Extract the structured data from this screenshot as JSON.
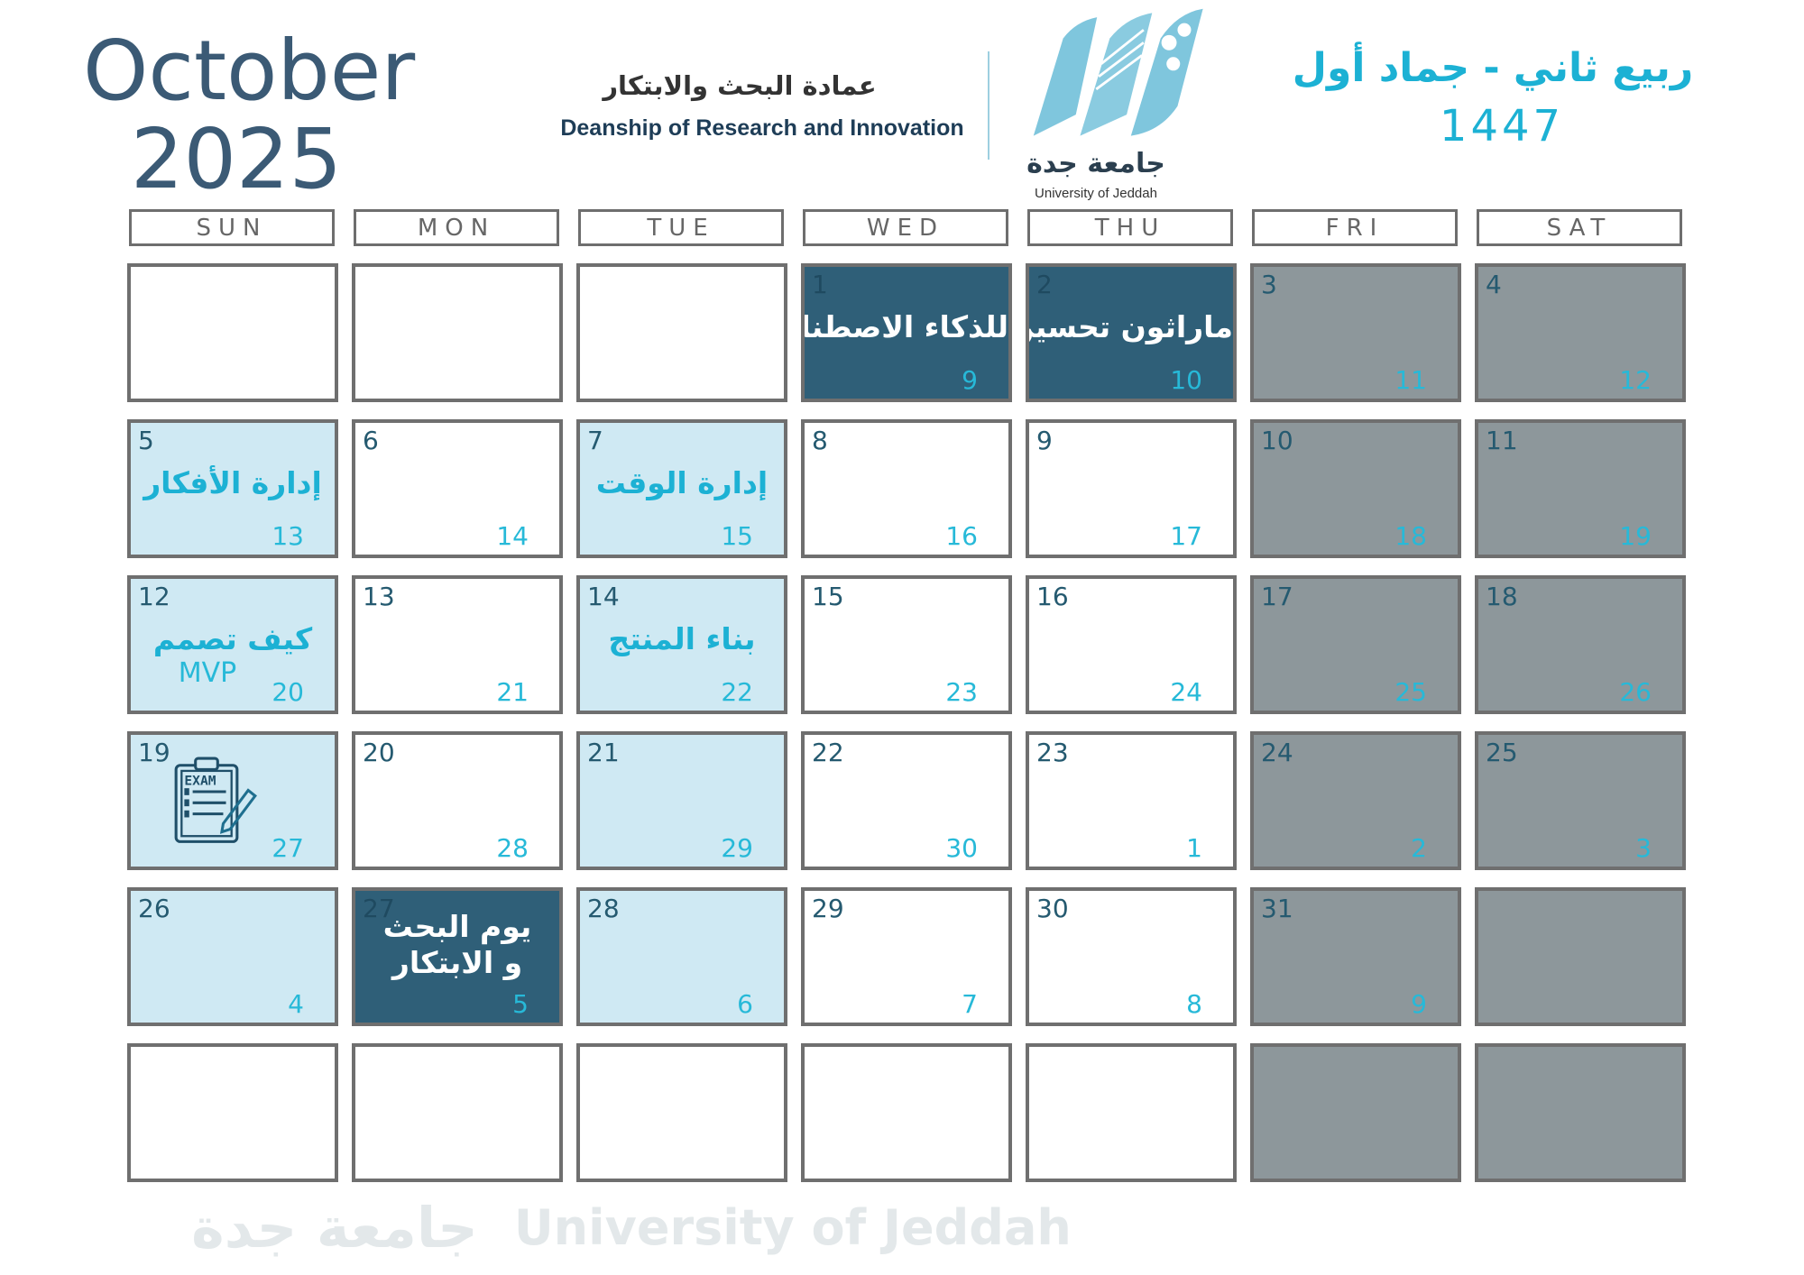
{
  "header": {
    "month": "October",
    "year": "2025",
    "deanship_ar": "عمادة البحث والابتكار",
    "deanship_en": "Deanship of Research and Innovation",
    "university_ar": "جامعة جدة",
    "university_en": "University of Jeddah",
    "hijri_months": "ربيع ثاني - جماد أول",
    "hijri_year": "1447"
  },
  "watermark": {
    "ar": "جامعة جدة",
    "en": "University of Jeddah"
  },
  "colors": {
    "dark": "#2f5f78",
    "accent": "#1cb1d4",
    "light_blue": "#cfe9f3",
    "gray": "#8d979b"
  },
  "weekdays": [
    "SUN",
    "MON",
    "TUE",
    "WED",
    "THU",
    "FRI",
    "SAT"
  ],
  "weeks": [
    [
      {
        "t": "white"
      },
      {
        "t": "white"
      },
      {
        "t": "white"
      },
      {
        "t": "dark",
        "g": "1",
        "h": "9",
        "ev": "للذكاء الاصطناعي"
      },
      {
        "t": "dark",
        "g": "2",
        "h": "10",
        "ev": "ماراثون تحسين"
      },
      {
        "t": "gray",
        "g": "3",
        "h": "11"
      },
      {
        "t": "gray",
        "g": "4",
        "h": "12"
      }
    ],
    [
      {
        "t": "blue",
        "g": "5",
        "h": "13",
        "ev": "إدارة الأفكار"
      },
      {
        "t": "white",
        "g": "6",
        "h": "14"
      },
      {
        "t": "blue",
        "g": "7",
        "h": "15",
        "ev": "إدارة الوقت"
      },
      {
        "t": "white",
        "g": "8",
        "h": "16"
      },
      {
        "t": "white",
        "g": "9",
        "h": "17"
      },
      {
        "t": "gray",
        "g": "10",
        "h": "18"
      },
      {
        "t": "gray",
        "g": "11",
        "h": "19"
      }
    ],
    [
      {
        "t": "blue",
        "g": "12",
        "h": "20",
        "ev": "كيف تصمم",
        "sub": "MVP"
      },
      {
        "t": "white",
        "g": "13",
        "h": "21"
      },
      {
        "t": "blue",
        "g": "14",
        "h": "22",
        "ev": "بناء المنتج"
      },
      {
        "t": "white",
        "g": "15",
        "h": "23"
      },
      {
        "t": "white",
        "g": "16",
        "h": "24"
      },
      {
        "t": "gray",
        "g": "17",
        "h": "25"
      },
      {
        "t": "gray",
        "g": "18",
        "h": "26"
      }
    ],
    [
      {
        "t": "blue",
        "g": "19",
        "h": "27",
        "icon": "exam-clipboard-icon",
        "icon_text": "EXAM"
      },
      {
        "t": "white",
        "g": "20",
        "h": "28"
      },
      {
        "t": "blue",
        "g": "21",
        "h": "29"
      },
      {
        "t": "white",
        "g": "22",
        "h": "30"
      },
      {
        "t": "white",
        "g": "23",
        "h": "1"
      },
      {
        "t": "gray",
        "g": "24",
        "h": "2"
      },
      {
        "t": "gray",
        "g": "25",
        "h": "3"
      }
    ],
    [
      {
        "t": "blue",
        "g": "26",
        "h": "4"
      },
      {
        "t": "dark",
        "g": "27",
        "h": "5",
        "ev": "يوم البحث و الابتكار"
      },
      {
        "t": "blue",
        "g": "28",
        "h": "6"
      },
      {
        "t": "white",
        "g": "29",
        "h": "7"
      },
      {
        "t": "white",
        "g": "30",
        "h": "8"
      },
      {
        "t": "gray",
        "g": "31",
        "h": "9"
      },
      {
        "t": "gray"
      }
    ],
    [
      {
        "t": "white"
      },
      {
        "t": "white"
      },
      {
        "t": "white"
      },
      {
        "t": "white"
      },
      {
        "t": "white"
      },
      {
        "t": "gray"
      },
      {
        "t": "gray"
      }
    ]
  ]
}
